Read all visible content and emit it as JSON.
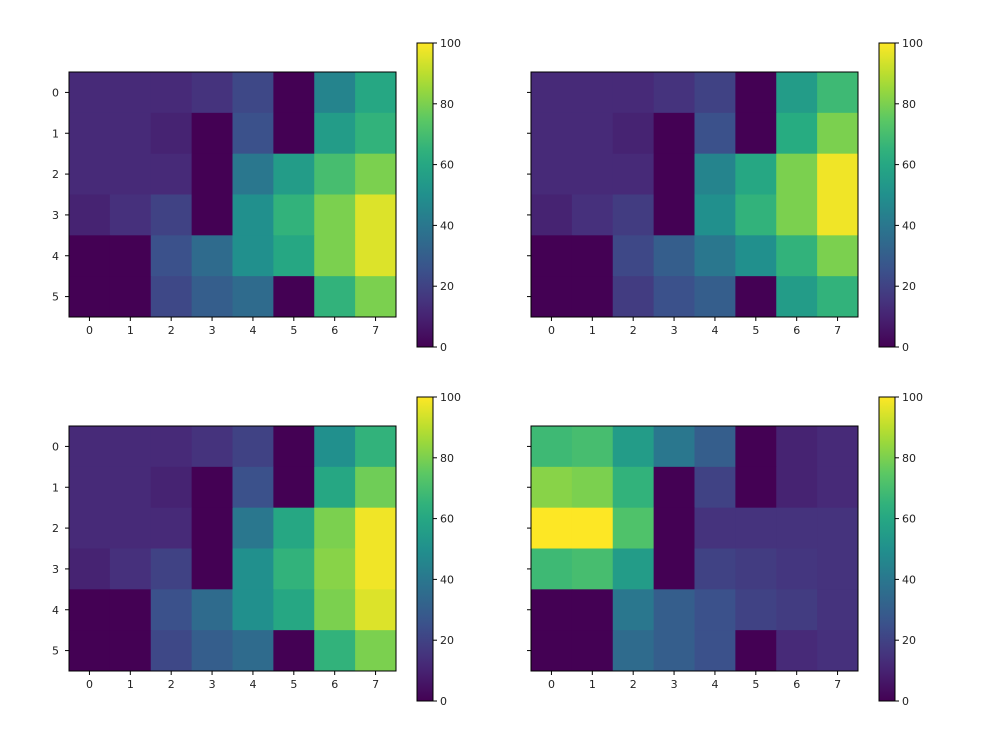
{
  "figure": {
    "background": "#ffffff"
  },
  "chart_data": [
    {
      "type": "heatmap",
      "title": "",
      "x_ticks": [
        "0",
        "1",
        "2",
        "3",
        "4",
        "5",
        "6",
        "7"
      ],
      "y_ticks": [
        "0",
        "1",
        "2",
        "3",
        "4",
        "5"
      ],
      "show_y_ticklabels": true,
      "colormap": "viridis",
      "colorbar": {
        "range": [
          0,
          100
        ],
        "ticks": [
          "0",
          "20",
          "40",
          "60",
          "80",
          "100"
        ]
      },
      "values": [
        [
          12,
          12,
          12,
          15,
          22,
          0,
          45,
          60
        ],
        [
          12,
          12,
          10,
          0,
          25,
          0,
          55,
          65
        ],
        [
          12,
          12,
          12,
          0,
          40,
          55,
          70,
          80
        ],
        [
          10,
          14,
          20,
          0,
          50,
          65,
          80,
          95
        ],
        [
          0,
          0,
          25,
          35,
          50,
          60,
          80,
          95
        ],
        [
          0,
          0,
          22,
          30,
          35,
          0,
          65,
          80
        ]
      ]
    },
    {
      "type": "heatmap",
      "title": "",
      "x_ticks": [
        "0",
        "1",
        "2",
        "3",
        "4",
        "5",
        "6",
        "7"
      ],
      "y_ticks": [
        "0",
        "1",
        "2",
        "3",
        "4",
        "5"
      ],
      "show_y_ticklabels": false,
      "colormap": "viridis",
      "colorbar": {
        "range": [
          0,
          100
        ],
        "ticks": [
          "0",
          "20",
          "40",
          "60",
          "80",
          "100"
        ]
      },
      "values": [
        [
          12,
          12,
          12,
          15,
          20,
          0,
          55,
          68
        ],
        [
          12,
          12,
          10,
          0,
          25,
          0,
          62,
          80
        ],
        [
          12,
          12,
          12,
          0,
          45,
          60,
          80,
          98
        ],
        [
          10,
          14,
          18,
          0,
          50,
          65,
          80,
          98
        ],
        [
          0,
          0,
          22,
          30,
          40,
          50,
          65,
          80
        ],
        [
          0,
          0,
          18,
          25,
          30,
          0,
          55,
          65
        ]
      ]
    },
    {
      "type": "heatmap",
      "title": "",
      "x_ticks": [
        "0",
        "1",
        "2",
        "3",
        "4",
        "5",
        "6",
        "7"
      ],
      "y_ticks": [
        "0",
        "1",
        "2",
        "3",
        "4",
        "5"
      ],
      "show_y_ticklabels": true,
      "colormap": "viridis",
      "colorbar": {
        "range": [
          0,
          100
        ],
        "ticks": [
          "0",
          "20",
          "40",
          "60",
          "80",
          "100"
        ]
      },
      "values": [
        [
          12,
          12,
          12,
          15,
          20,
          0,
          50,
          65
        ],
        [
          12,
          12,
          10,
          0,
          25,
          0,
          60,
          78
        ],
        [
          12,
          12,
          12,
          0,
          40,
          60,
          80,
          98
        ],
        [
          10,
          14,
          20,
          0,
          50,
          65,
          82,
          98
        ],
        [
          0,
          0,
          25,
          35,
          50,
          60,
          80,
          95
        ],
        [
          0,
          0,
          22,
          30,
          35,
          0,
          65,
          80
        ]
      ]
    },
    {
      "type": "heatmap",
      "title": "",
      "x_ticks": [
        "0",
        "1",
        "2",
        "3",
        "4",
        "5",
        "6",
        "7"
      ],
      "y_ticks": [
        "0",
        "1",
        "2",
        "3",
        "4",
        "5"
      ],
      "show_y_ticklabels": false,
      "colormap": "viridis",
      "colorbar": {
        "range": [
          0,
          100
        ],
        "ticks": [
          "0",
          "20",
          "40",
          "60",
          "80",
          "100"
        ]
      },
      "values": [
        [
          68,
          70,
          55,
          40,
          30,
          0,
          10,
          12
        ],
        [
          82,
          80,
          65,
          0,
          20,
          0,
          10,
          12
        ],
        [
          100,
          100,
          72,
          0,
          15,
          15,
          15,
          15
        ],
        [
          68,
          70,
          55,
          0,
          20,
          18,
          16,
          15
        ],
        [
          0,
          0,
          40,
          30,
          25,
          20,
          18,
          15
        ],
        [
          0,
          0,
          35,
          30,
          25,
          0,
          12,
          14
        ]
      ]
    }
  ]
}
